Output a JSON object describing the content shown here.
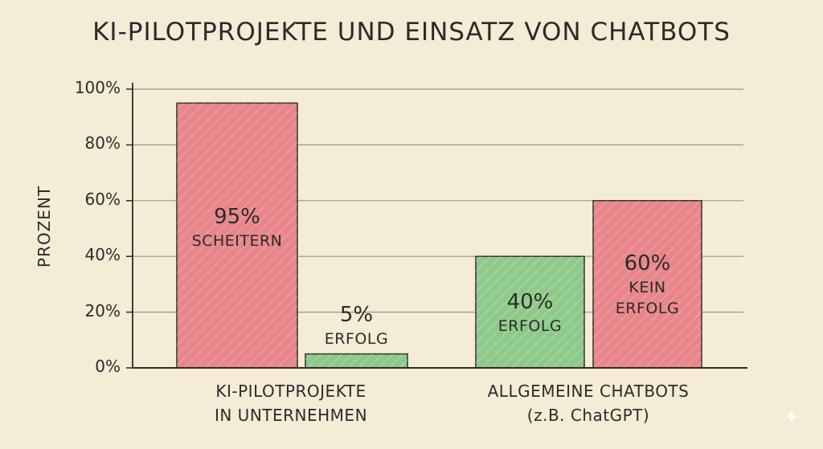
{
  "chart_data": {
    "type": "bar",
    "title": "KI-PILOTPROJEKTE UND EINSATZ VON CHATBOTS",
    "ylabel": "PROZENT",
    "xlabel": "",
    "ylim": [
      0,
      100
    ],
    "y_ticks": [
      "0%",
      "20%",
      "40%",
      "60%",
      "80%",
      "100%"
    ],
    "y_tick_values": [
      0,
      20,
      40,
      60,
      80,
      100
    ],
    "grid": true,
    "groups": [
      {
        "category_lines": [
          "KI-PILOTPROJEKTE",
          "IN UNTERNEHMEN"
        ],
        "bars": [
          {
            "value": 95,
            "pct_label": "95%",
            "text_lines": [
              "SCHEITERN"
            ],
            "color": "#e8868a",
            "outcome": "fail"
          },
          {
            "value": 5,
            "pct_label": "5%",
            "text_lines": [
              "ERFOLG"
            ],
            "color": "#8fc98a",
            "outcome": "success"
          }
        ]
      },
      {
        "category_lines": [
          "ALLGEMEINE CHATBOTS",
          "(z.B. ChatGPT)"
        ],
        "bars": [
          {
            "value": 40,
            "pct_label": "40%",
            "text_lines": [
              "ERFOLG"
            ],
            "color": "#8fc98a",
            "outcome": "success"
          },
          {
            "value": 60,
            "pct_label": "60%",
            "text_lines": [
              "KEIN",
              "ERFOLG"
            ],
            "color": "#e8868a",
            "outcome": "fail"
          }
        ]
      }
    ],
    "colors": {
      "fail": "#e8868a",
      "success": "#8fc98a",
      "background": "#f5ecd6",
      "grid": "#9a968c"
    }
  },
  "icons": {
    "corner": "sparkle-icon"
  }
}
